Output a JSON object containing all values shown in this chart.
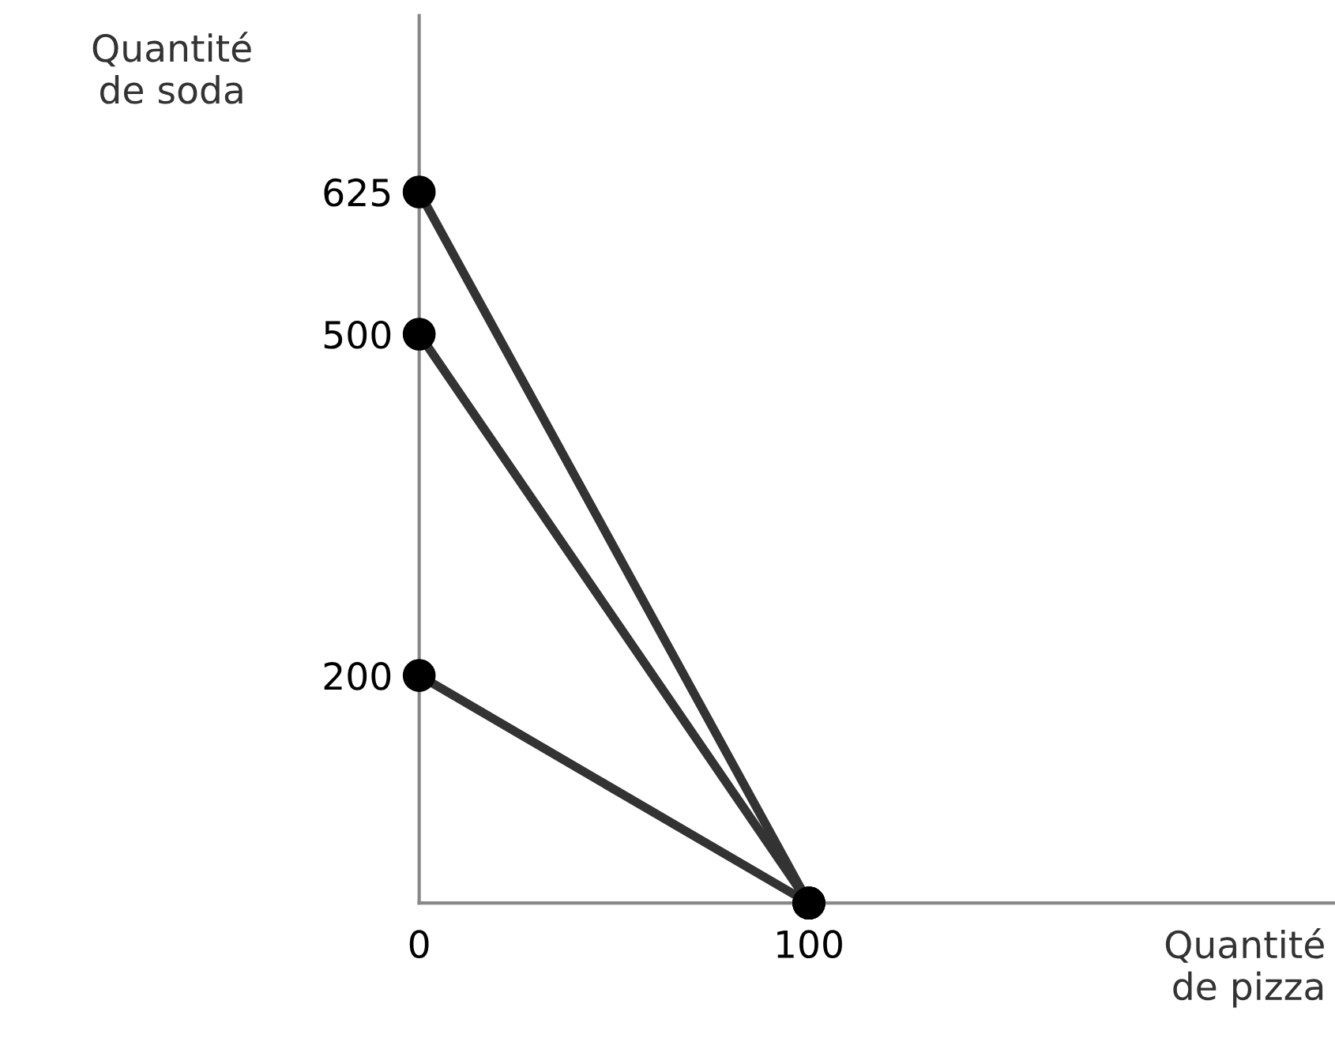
{
  "chart_data": {
    "type": "line",
    "xlabel": "Quantité\nde pizza",
    "ylabel": "Quantité\nde soda",
    "x": [
      0,
      100
    ],
    "xlim": [
      0,
      235
    ],
    "ylim": [
      0,
      780
    ],
    "xticks": [
      0,
      100
    ],
    "yticks": [
      200,
      500,
      625
    ],
    "marker": "circle",
    "line_style": "solid",
    "grid": false,
    "legend": false,
    "series": [
      {
        "values": [
          625,
          0
        ],
        "color": "#333333"
      },
      {
        "values": [
          500,
          0
        ],
        "color": "#333333"
      },
      {
        "values": [
          200,
          0
        ],
        "color": "#333333"
      }
    ]
  }
}
